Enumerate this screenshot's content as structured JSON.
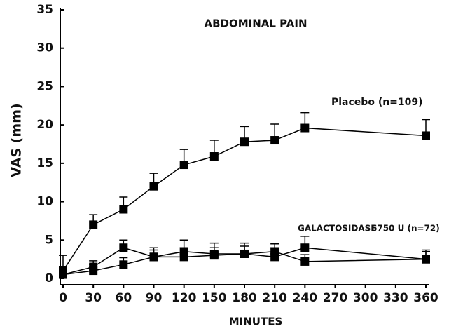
{
  "chart_data": {
    "type": "line",
    "title": "ABDOMINAL PAIN",
    "x_label": "MINUTES",
    "y_label": "VAS (mm)",
    "x": [
      0,
      30,
      60,
      90,
      120,
      150,
      180,
      210,
      240,
      360
    ],
    "series": [
      {
        "name": "Placebo (n=109)",
        "color": "#000000",
        "values": [
          1,
          7,
          9,
          12,
          14.8,
          15.9,
          17.8,
          18,
          19.6,
          18.6
        ],
        "errors": [
          2,
          1.3,
          1.6,
          1.7,
          2,
          2.1,
          2,
          2.1,
          2,
          2.1
        ]
      },
      {
        "name": "GALACTOSIDASE",
        "name_suffix": "6750 U (n=72)",
        "color": "#000000",
        "name_color": "#e8322b",
        "values": [
          0.5,
          1.5,
          4,
          2.8,
          3.5,
          3.2,
          3.2,
          2.8,
          4,
          2.5
        ],
        "errors": [
          1,
          0.8,
          1,
          1.2,
          1.5,
          1.4,
          1.4,
          1.2,
          1.5,
          1.2
        ]
      },
      {
        "color": "#000000",
        "values": [
          0.5,
          1,
          1.8,
          2.8,
          2.8,
          3,
          3.2,
          3.5,
          2.2,
          2.5
        ],
        "errors": [
          0.8,
          0.8,
          0.9,
          0.9,
          1.2,
          1,
          1,
          1,
          0.9,
          1
        ]
      }
    ],
    "xlim": [
      0,
      360
    ],
    "xticks": [
      0,
      30,
      60,
      90,
      120,
      150,
      180,
      210,
      240,
      270,
      300,
      330,
      360
    ],
    "ylim": [
      0,
      35
    ],
    "yticks": [
      0,
      5,
      10,
      15,
      20,
      25,
      30,
      35
    ]
  }
}
